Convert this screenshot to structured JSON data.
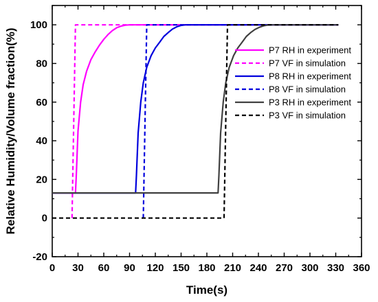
{
  "chart_data": {
    "type": "line",
    "xlabel": "Time(s)",
    "ylabel": "Relative Humidity/Volume fraction(%)",
    "xlim": [
      0,
      360
    ],
    "ylim": [
      -20,
      110
    ],
    "xticks": [
      0,
      30,
      60,
      90,
      120,
      150,
      180,
      210,
      240,
      270,
      300,
      330,
      360
    ],
    "yticks": [
      -20,
      0,
      20,
      40,
      60,
      80,
      100
    ],
    "grid": false,
    "legend_position": "right",
    "series": [
      {
        "name": "P7 RH in experiment",
        "color": "#ff00ff",
        "dash": "solid",
        "x": [
          0,
          27,
          28,
          30,
          33,
          36,
          40,
          45,
          50,
          55,
          60,
          65,
          70,
          75,
          80,
          85,
          90,
          333
        ],
        "y": [
          13,
          13,
          22,
          45,
          60,
          69,
          76,
          82,
          86,
          89.5,
          92.5,
          95,
          97,
          98.5,
          99.3,
          99.8,
          100,
          100
        ]
      },
      {
        "name": "P7 VF in simulation",
        "color": "#ff00ff",
        "dash": "dashed",
        "x": [
          23,
          25,
          27,
          333
        ],
        "y": [
          0,
          50,
          100,
          100
        ]
      },
      {
        "name": "P8 RH in experiment",
        "color": "#0000dd",
        "dash": "solid",
        "x": [
          0,
          97,
          98,
          100,
          103,
          106,
          110,
          115,
          120,
          125,
          130,
          135,
          140,
          145,
          150,
          155,
          333
        ],
        "y": [
          13,
          13,
          22,
          44,
          60,
          70,
          78,
          84,
          88,
          91,
          94,
          96,
          97.8,
          99,
          99.7,
          100,
          100
        ]
      },
      {
        "name": "P8 VF in simulation",
        "color": "#0000dd",
        "dash": "dashed",
        "x": [
          106,
          108,
          110,
          333
        ],
        "y": [
          0,
          50,
          100,
          100
        ]
      },
      {
        "name": "P3 RH in experiment",
        "color": "#404040",
        "dash": "solid",
        "x": [
          0,
          193,
          194,
          196,
          199,
          202,
          206,
          211,
          216,
          221,
          226,
          231,
          236,
          241,
          246,
          251,
          255,
          333
        ],
        "y": [
          13,
          13,
          22,
          44,
          60,
          70,
          78,
          84,
          88,
          91,
          94,
          96,
          97.6,
          98.7,
          99.5,
          99.9,
          100,
          100
        ]
      },
      {
        "name": "P3 VF in simulation",
        "color": "#000000",
        "dash": "dashed",
        "x": [
          0,
          200,
          202,
          204,
          333
        ],
        "y": [
          0,
          0,
          50,
          100,
          100
        ]
      }
    ]
  }
}
